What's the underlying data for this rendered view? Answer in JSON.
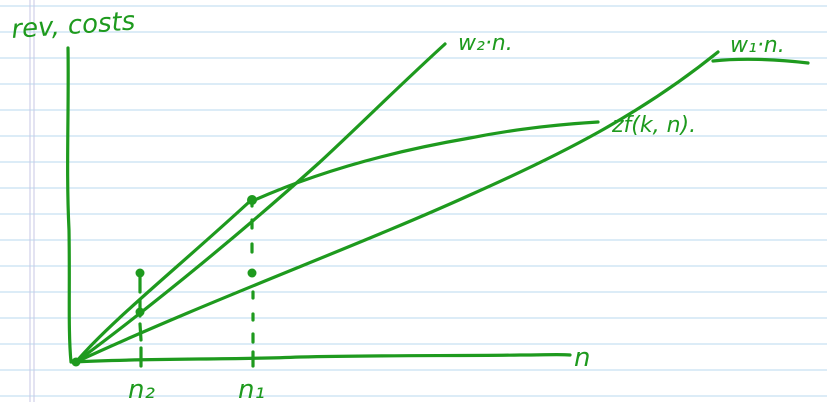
{
  "ink_color": "#1e9a1e",
  "axes": {
    "y_label": "rev, costs",
    "x_label": "n"
  },
  "curves": {
    "steep_line_label": "w₂·n.",
    "shallow_line_label": "w₁·n.",
    "revenue_curve_label": "zf(k, n)."
  },
  "ticks": {
    "n2_label": "n₂",
    "n1_label": "n₁"
  }
}
